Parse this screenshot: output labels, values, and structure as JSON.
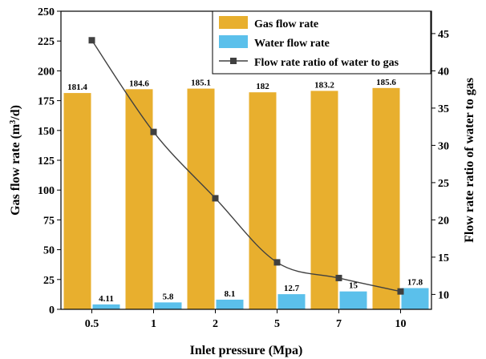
{
  "chart_data": {
    "type": "bar",
    "categories": [
      "0.5",
      "1",
      "2",
      "5",
      "7",
      "10"
    ],
    "xlabel": "Inlet pressure (Mpa)",
    "ylabel": "Gas flow rate (m³/d)",
    "ylabel_base": "Gas flow rate (m",
    "ylabel_sup": "3",
    "ylabel_tail": "/d)",
    "y2label": "Flow rate ratio of water to gas",
    "ylim": [
      0,
      250
    ],
    "yticks": [
      0,
      25,
      50,
      75,
      100,
      125,
      150,
      175,
      200,
      225,
      250
    ],
    "y2lim": [
      8,
      48
    ],
    "y2ticks": [
      10,
      15,
      20,
      25,
      30,
      35,
      40,
      45
    ],
    "legend_position": "top-right",
    "series": [
      {
        "name": "Gas flow rate",
        "type": "bar",
        "axis": "left",
        "color": "#E8AF2E",
        "values": [
          181.4,
          184.6,
          185.1,
          182,
          183.2,
          185.6
        ],
        "labels": [
          "181.4",
          "184.6",
          "185.1",
          "182",
          "183.2",
          "185.6"
        ]
      },
      {
        "name": "Water flow rate",
        "type": "bar",
        "axis": "left",
        "color": "#5BC0EB",
        "values": [
          4.11,
          5.8,
          8.1,
          12.7,
          15,
          17.8
        ],
        "labels": [
          "4.11",
          "5.8",
          "8.1",
          "12.7",
          "15",
          "17.8"
        ]
      },
      {
        "name": "Flow rate ratio of water to gas",
        "type": "line",
        "axis": "right",
        "color": "#404040",
        "values": [
          44.1,
          31.8,
          22.9,
          14.3,
          12.2,
          10.4
        ]
      }
    ]
  }
}
